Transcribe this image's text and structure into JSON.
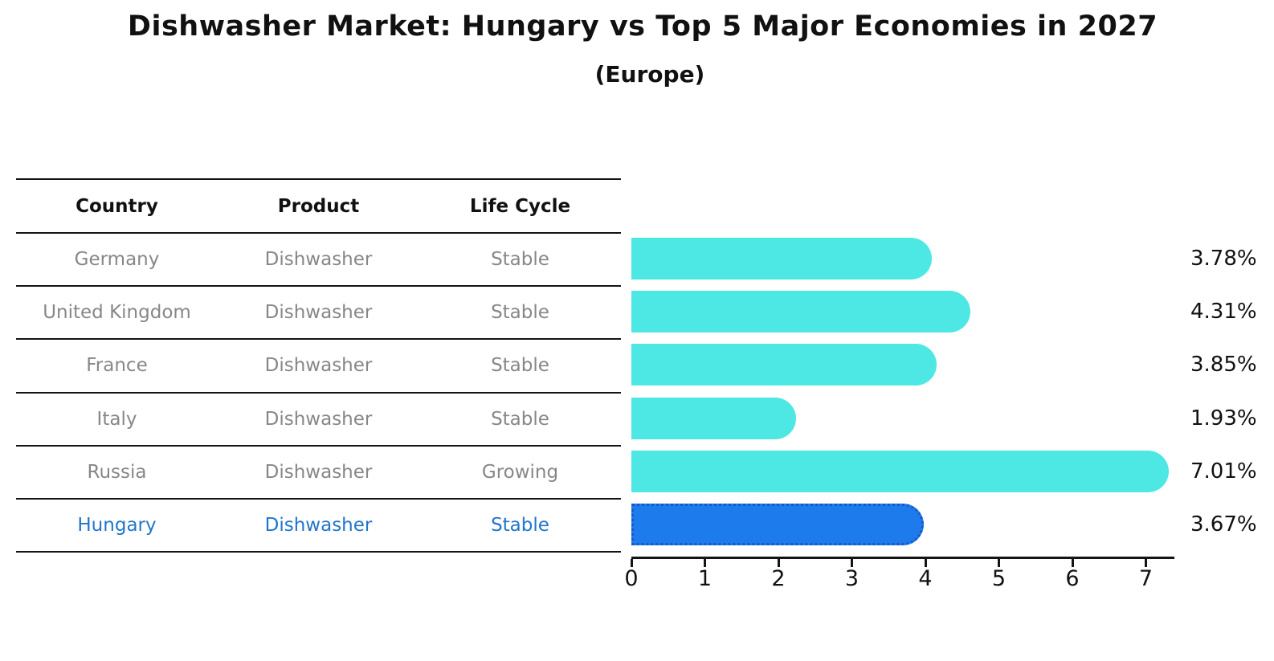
{
  "title": "Dishwasher Market: Hungary vs Top 5 Major Economies in 2027",
  "subtitle": "(Europe)",
  "colors": {
    "bar": "#4DE8E4",
    "highlight_bar": "#1E7BEB",
    "highlight_bar_border": "#1559C9",
    "highlight_text": "#2176CC",
    "row_text": "#878787",
    "header_text": "#111111",
    "line": "#141414"
  },
  "table": {
    "headers": [
      "Country",
      "Product",
      "Life Cycle"
    ],
    "rows": [
      {
        "country": "Germany",
        "product": "Dishwasher",
        "life_cycle": "Stable",
        "highlight": false
      },
      {
        "country": "United Kingdom",
        "product": "Dishwasher",
        "life_cycle": "Stable",
        "highlight": false
      },
      {
        "country": "France",
        "product": "Dishwasher",
        "life_cycle": "Stable",
        "highlight": false
      },
      {
        "country": "Italy",
        "product": "Dishwasher",
        "life_cycle": "Stable",
        "highlight": false
      },
      {
        "country": "Russia",
        "product": "Dishwasher",
        "life_cycle": "Growing",
        "highlight": false
      },
      {
        "country": "Hungary",
        "product": "Dishwasher",
        "life_cycle": "Stable",
        "highlight": true
      }
    ]
  },
  "chart_data": {
    "type": "bar",
    "orientation": "horizontal",
    "title": "Dishwasher Market: Hungary vs Top 5 Major Economies in 2027",
    "subtitle": "(Europe)",
    "categories": [
      "Germany",
      "United Kingdom",
      "France",
      "Italy",
      "Russia",
      "Hungary"
    ],
    "values": [
      3.78,
      4.31,
      3.85,
      1.93,
      7.01,
      3.67
    ],
    "value_labels": [
      "3.78%",
      "4.31%",
      "3.85%",
      "1.93%",
      "7.01%",
      "3.67%"
    ],
    "unit": "%",
    "highlight_category": "Hungary",
    "highlight_index": 5,
    "x_ticks": [
      0,
      1,
      2,
      3,
      4,
      5,
      6,
      7
    ],
    "xlim": [
      0,
      7.39
    ],
    "grid": false,
    "legend": false,
    "bar_color": "#4DE8E4",
    "highlight_bar_color": "#1E7BEB"
  }
}
